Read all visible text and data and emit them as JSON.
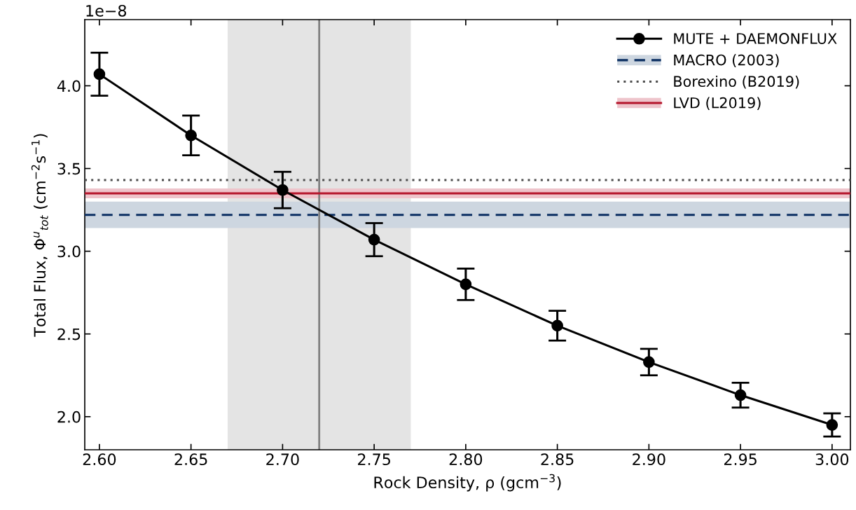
{
  "chart_data": {
    "type": "line",
    "xlabel": "Rock Density, ρ (gcm$^{−3}$)",
    "ylabel": "Total Flux, Φ$^{u}$$_{tot}$ (cm$^{−2}$s$^{−1}$)",
    "x": [
      2.6,
      2.65,
      2.7,
      2.75,
      2.8,
      2.85,
      2.9,
      2.95,
      3.0
    ],
    "series": [
      {
        "name": "MUTE + DAEMONFLUX",
        "color": "#000000",
        "values": [
          4.07,
          3.7,
          3.37,
          3.07,
          2.8,
          2.55,
          2.33,
          2.13,
          1.95
        ],
        "errors": [
          0.13,
          0.12,
          0.11,
          0.1,
          0.095,
          0.09,
          0.08,
          0.075,
          0.07
        ]
      }
    ],
    "marker": "circle",
    "line_style": "solid",
    "xlim": [
      2.592,
      3.01
    ],
    "xticks": [
      {
        "value": 2.6,
        "label": "2.60"
      },
      {
        "value": 2.65,
        "label": "2.65"
      },
      {
        "value": 2.7,
        "label": "2.70"
      },
      {
        "value": 2.75,
        "label": "2.75"
      },
      {
        "value": 2.8,
        "label": "2.80"
      },
      {
        "value": 2.85,
        "label": "2.85"
      },
      {
        "value": 2.9,
        "label": "2.90"
      },
      {
        "value": 2.95,
        "label": "2.95"
      },
      {
        "value": 3.0,
        "label": "3.00"
      }
    ],
    "ylim": [
      1.8,
      4.4
    ],
    "yticks": [
      {
        "value": 2.0,
        "label": "2.0"
      },
      {
        "value": 2.5,
        "label": "2.5"
      },
      {
        "value": 3.0,
        "label": "3.0"
      },
      {
        "value": 3.5,
        "label": "3.5"
      },
      {
        "value": 4.0,
        "label": "4.0"
      }
    ],
    "annotations": [
      "1e−8"
    ],
    "ref_lines": [
      {
        "axis": "y",
        "value": 3.22,
        "label": "MACRO (2003)",
        "color": "#0b2f62",
        "line_style": "dashed"
      },
      {
        "axis": "y",
        "value": 3.43,
        "label": "Borexino (B2019)",
        "color": "#4d4d4d",
        "line_style": "dotted"
      },
      {
        "axis": "y",
        "value": 3.35,
        "label": "LVD (L2019)",
        "color": "#b5152b",
        "line_style": "solid"
      },
      {
        "axis": "x",
        "value": 2.72,
        "color": "#808080",
        "line_style": "solid"
      }
    ],
    "bands": [
      {
        "axis": "y",
        "from": 3.14,
        "to": 3.3,
        "color": "#cdd6e0"
      },
      {
        "axis": "y",
        "from": 3.32,
        "to": 3.38,
        "color": "#eec4cb"
      },
      {
        "axis": "x",
        "from": 2.67,
        "to": 2.77,
        "color": "#e4e4e4"
      }
    ],
    "grid": false,
    "legend": "top right"
  }
}
